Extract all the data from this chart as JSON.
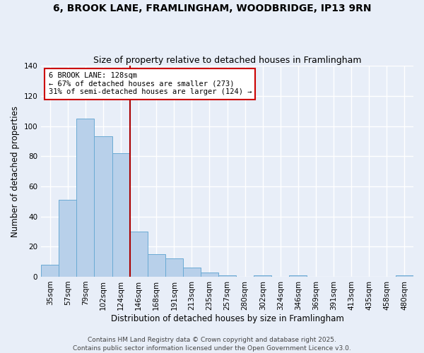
{
  "title": "6, BROOK LANE, FRAMLINGHAM, WOODBRIDGE, IP13 9RN",
  "subtitle": "Size of property relative to detached houses in Framlingham",
  "xlabel": "Distribution of detached houses by size in Framlingham",
  "ylabel": "Number of detached properties",
  "bar_labels": [
    "35sqm",
    "57sqm",
    "79sqm",
    "102sqm",
    "124sqm",
    "146sqm",
    "168sqm",
    "191sqm",
    "213sqm",
    "235sqm",
    "257sqm",
    "280sqm",
    "302sqm",
    "324sqm",
    "346sqm",
    "369sqm",
    "391sqm",
    "413sqm",
    "435sqm",
    "458sqm",
    "480sqm"
  ],
  "bar_values": [
    8,
    51,
    105,
    93,
    82,
    30,
    15,
    12,
    6,
    3,
    1,
    0,
    1,
    0,
    1,
    0,
    0,
    0,
    0,
    0,
    1
  ],
  "bar_color": "#b8d0ea",
  "bar_edge_color": "#6aaad4",
  "background_color": "#e8eef8",
  "grid_color": "#ffffff",
  "ylim": [
    0,
    140
  ],
  "yticks": [
    0,
    20,
    40,
    60,
    80,
    100,
    120,
    140
  ],
  "vline_bar_index": 4,
  "vline_color": "#aa0000",
  "annotation_title": "6 BROOK LANE: 128sqm",
  "annotation_line1": "← 67% of detached houses are smaller (273)",
  "annotation_line2": "31% of semi-detached houses are larger (124) →",
  "annotation_box_color": "#cc0000",
  "footer1": "Contains HM Land Registry data © Crown copyright and database right 2025.",
  "footer2": "Contains public sector information licensed under the Open Government Licence v3.0.",
  "title_fontsize": 10,
  "subtitle_fontsize": 9,
  "axis_label_fontsize": 8.5,
  "tick_fontsize": 7.5,
  "annotation_fontsize": 7.5,
  "footer_fontsize": 6.5
}
